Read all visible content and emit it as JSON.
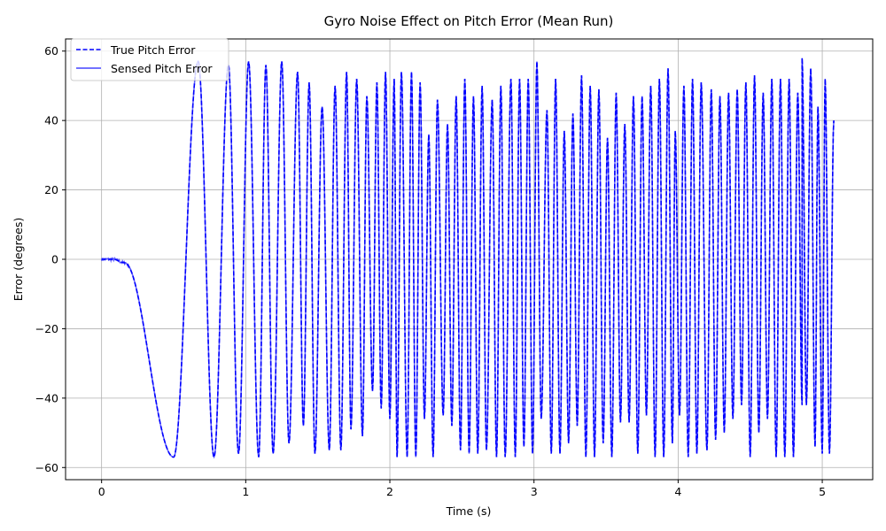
{
  "chart_data": {
    "type": "line",
    "title": "Gyro Noise Effect on Pitch Error (Mean Run)",
    "xlabel": "Time (s)",
    "ylabel": "Error (degrees)",
    "xlim": [
      -0.25,
      5.35
    ],
    "ylim": [
      -63.5,
      63.5
    ],
    "xticks": [
      0,
      1,
      2,
      3,
      4,
      5
    ],
    "xtick_labels": [
      "0",
      "1",
      "2",
      "3",
      "4",
      "5"
    ],
    "yticks": [
      -60,
      -40,
      -20,
      0,
      20,
      40,
      60
    ],
    "ytick_labels": [
      "−60",
      "−40",
      "−20",
      "0",
      "20",
      "40",
      "60"
    ],
    "grid": true,
    "legend_position": "top-left",
    "colors": {
      "true_series": "#0000ff",
      "sensed_series": "#4444ff"
    },
    "extrema": [
      [
        0.0,
        0
      ],
      [
        0.08,
        0
      ],
      [
        0.16,
        -1
      ],
      [
        0.5,
        -57
      ],
      [
        0.67,
        57
      ],
      [
        0.78,
        -57
      ],
      [
        0.88,
        56
      ],
      [
        0.95,
        -56
      ],
      [
        1.02,
        57
      ],
      [
        1.09,
        -57
      ],
      [
        1.14,
        56
      ],
      [
        1.19,
        -56
      ],
      [
        1.25,
        57
      ],
      [
        1.3,
        -53
      ],
      [
        1.36,
        54
      ],
      [
        1.4,
        -48
      ],
      [
        1.44,
        51
      ],
      [
        1.48,
        -56
      ],
      [
        1.53,
        44
      ],
      [
        1.58,
        -55
      ],
      [
        1.62,
        50
      ],
      [
        1.66,
        -55
      ],
      [
        1.7,
        54
      ],
      [
        1.73,
        -49
      ],
      [
        1.77,
        52
      ],
      [
        1.81,
        -51
      ],
      [
        1.84,
        47
      ],
      [
        1.88,
        -38
      ],
      [
        1.91,
        51
      ],
      [
        1.94,
        -43
      ],
      [
        1.97,
        54
      ],
      [
        2.0,
        -46
      ],
      [
        2.03,
        52
      ],
      [
        2.05,
        -57
      ],
      [
        2.08,
        54
      ],
      [
        2.12,
        -57
      ],
      [
        2.15,
        54
      ],
      [
        2.18,
        -57
      ],
      [
        2.21,
        51
      ],
      [
        2.24,
        -46
      ],
      [
        2.27,
        36
      ],
      [
        2.3,
        -57
      ],
      [
        2.33,
        46
      ],
      [
        2.37,
        -45
      ],
      [
        2.4,
        39
      ],
      [
        2.43,
        -48
      ],
      [
        2.46,
        47
      ],
      [
        2.49,
        -55
      ],
      [
        2.52,
        52
      ],
      [
        2.55,
        -56
      ],
      [
        2.58,
        47
      ],
      [
        2.61,
        -56
      ],
      [
        2.64,
        50
      ],
      [
        2.67,
        -55
      ],
      [
        2.71,
        46
      ],
      [
        2.74,
        -57
      ],
      [
        2.77,
        50
      ],
      [
        2.8,
        -57
      ],
      [
        2.84,
        52
      ],
      [
        2.87,
        -57
      ],
      [
        2.9,
        52
      ],
      [
        2.93,
        -54
      ],
      [
        2.96,
        52
      ],
      [
        2.99,
        -56
      ],
      [
        3.02,
        57
      ],
      [
        3.05,
        -46
      ],
      [
        3.09,
        43
      ],
      [
        3.12,
        -56
      ],
      [
        3.15,
        52
      ],
      [
        3.18,
        -56
      ],
      [
        3.21,
        37
      ],
      [
        3.24,
        -53
      ],
      [
        3.27,
        42
      ],
      [
        3.3,
        -48
      ],
      [
        3.33,
        53
      ],
      [
        3.36,
        -57
      ],
      [
        3.39,
        50
      ],
      [
        3.42,
        -57
      ],
      [
        3.45,
        49
      ],
      [
        3.48,
        -53
      ],
      [
        3.51,
        35
      ],
      [
        3.54,
        -57
      ],
      [
        3.57,
        48
      ],
      [
        3.6,
        -47
      ],
      [
        3.63,
        39
      ],
      [
        3.66,
        -47
      ],
      [
        3.69,
        47
      ],
      [
        3.72,
        -56
      ],
      [
        3.75,
        47
      ],
      [
        3.78,
        -45
      ],
      [
        3.81,
        50
      ],
      [
        3.84,
        -57
      ],
      [
        3.87,
        52
      ],
      [
        3.9,
        -57
      ],
      [
        3.93,
        55
      ],
      [
        3.96,
        -53
      ],
      [
        3.98,
        37
      ],
      [
        4.01,
        -45
      ],
      [
        4.04,
        50
      ],
      [
        4.07,
        -57
      ],
      [
        4.1,
        52
      ],
      [
        4.13,
        -56
      ],
      [
        4.16,
        51
      ],
      [
        4.2,
        -55
      ],
      [
        4.23,
        49
      ],
      [
        4.26,
        -52
      ],
      [
        4.29,
        47
      ],
      [
        4.32,
        -50
      ],
      [
        4.35,
        48
      ],
      [
        4.38,
        -46
      ],
      [
        4.41,
        49
      ],
      [
        4.44,
        -42
      ],
      [
        4.47,
        51
      ],
      [
        4.5,
        -57
      ],
      [
        4.53,
        53
      ],
      [
        4.56,
        -50
      ],
      [
        4.59,
        48
      ],
      [
        4.62,
        -46
      ],
      [
        4.65,
        52
      ],
      [
        4.68,
        -57
      ],
      [
        4.71,
        52
      ],
      [
        4.74,
        -57
      ],
      [
        4.77,
        52
      ],
      [
        4.8,
        -57
      ],
      [
        4.83,
        48
      ],
      [
        4.86,
        -42
      ],
      [
        4.86,
        58
      ],
      [
        4.89,
        -42
      ],
      [
        4.92,
        55
      ],
      [
        4.95,
        -54
      ],
      [
        4.97,
        44
      ],
      [
        5.0,
        -56
      ],
      [
        5.02,
        52
      ],
      [
        5.05,
        -56
      ],
      [
        5.08,
        40
      ]
    ],
    "series": [
      {
        "name": "True Pitch Error",
        "style": "dashed",
        "color": "#0000ff"
      },
      {
        "name": "Sensed Pitch Error",
        "style": "solid",
        "color": "#4444ff"
      }
    ]
  }
}
